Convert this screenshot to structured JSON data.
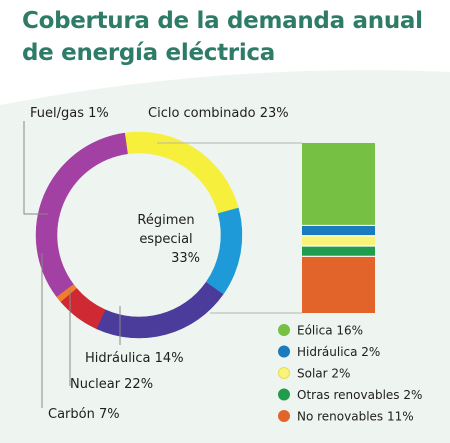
{
  "title": {
    "line1": "Cobertura de la demanda anual",
    "line2": "de energía eléctrica"
  },
  "colors": {
    "title": "#2e7c67",
    "background_panel": "#eef4ef"
  },
  "chart_data": {
    "type": "pie",
    "variant": "donut-with-breakdown-bar",
    "title": "Cobertura de la demanda anual de energía eléctrica",
    "slices": [
      {
        "label": "Ciclo combinado 23%",
        "value": 23,
        "color": "#f6ef3c"
      },
      {
        "label": "Régimen especial 33%",
        "value": 33,
        "color": "#ffffff"
      },
      {
        "label": "Hidráulica 14%",
        "value": 14,
        "color": "#1e9ad8"
      },
      {
        "label": "Nuclear 22%",
        "value": 22,
        "color": "#4b3c9c"
      },
      {
        "label": "Carbón 7%",
        "value": 7,
        "color": "#cf2a34"
      },
      {
        "label": "Fuel/gas 1%",
        "value": 1,
        "color": "#ef7f2b"
      }
    ],
    "outer_ring": [
      {
        "name": "Ciclo combinado",
        "value": 23,
        "color": "#f6ef3c"
      },
      {
        "name": "Hidráulica",
        "value": 14,
        "color": "#1e9ad8"
      },
      {
        "name": "Nuclear",
        "value": 22,
        "color": "#4b3c9c"
      },
      {
        "name": "Carbón",
        "value": 7,
        "color": "#cf2a34"
      },
      {
        "name": "Fuel/gas",
        "value": 1,
        "color": "#ef7f2b"
      },
      {
        "name": "",
        "value": 33,
        "color": "#a340a3"
      }
    ],
    "ring_labels": [
      "Ciclo combinado 23%",
      "Hidráulica 14%",
      "Nuclear 22%",
      "Carbón 7%",
      "Fuel/gas 1%"
    ],
    "center_label": [
      "Régimen",
      "especial",
      "33%"
    ],
    "breakdown": {
      "total": 33,
      "legend_position": "bottom-right",
      "items": [
        {
          "label": "Eólica 16%",
          "value": 16,
          "color": "#76c043"
        },
        {
          "label": "Hidráulica 2%",
          "value": 2,
          "color": "#1a7bbf"
        },
        {
          "label": "Solar 2%",
          "value": 2,
          "color": "#f8f47a"
        },
        {
          "label": "Otras renovables 2%",
          "value": 2,
          "color": "#1f9d4d"
        },
        {
          "label": "No renovables 11%",
          "value": 11,
          "color": "#e2642a"
        }
      ]
    }
  }
}
